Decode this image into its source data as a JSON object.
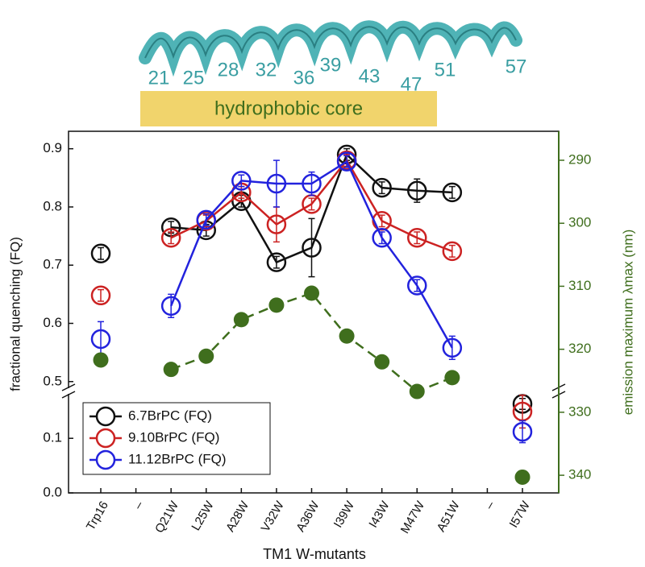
{
  "chart_data": {
    "type": "line",
    "helix_labels": [
      "21",
      "25",
      "28",
      "32",
      "36",
      "39",
      "43",
      "47",
      "51",
      "57"
    ],
    "annotation": "hydrophobic core",
    "x_label": "TM1 W-mutants",
    "y_label": "fractional quenching (FQ)",
    "y2_label": "emission maximum λmax (nm)",
    "categories": [
      "Trp16",
      "–",
      "Q21W",
      "L25W",
      "A28W",
      "V32W",
      "A36W",
      "I39W",
      "I43W",
      "M47W",
      "A51W",
      "–",
      "I57W"
    ],
    "ylim": [
      0,
      0.93
    ],
    "y_break": [
      0.18,
      0.49
    ],
    "yticks": [
      {
        "value": 0,
        "label": "0.0"
      },
      0.1,
      0.5,
      0.6,
      0.7,
      0.8,
      0.9
    ],
    "y2lim": [
      342.8,
      285.4
    ],
    "y2ticks": [
      290,
      300,
      310,
      320,
      330,
      340
    ],
    "y2_color": "#3f6e1d",
    "legend": "lower-left",
    "series": [
      {
        "name": "6.7BrPC (FQ)",
        "color": "#111111",
        "marker": "open",
        "values": [
          0.72,
          null,
          0.765,
          0.76,
          0.81,
          0.705,
          0.73,
          0.89,
          0.833,
          0.828,
          0.825,
          null,
          0.163
        ],
        "errors": [
          0.01,
          null,
          0.01,
          0.01,
          0.01,
          0.01,
          0.05,
          0.01,
          0.01,
          0.02,
          0.01,
          null,
          0.01
        ]
      },
      {
        "name": "9.10BrPC (FQ)",
        "color": "#cc2222",
        "marker": "open",
        "values": [
          0.648,
          null,
          0.747,
          0.776,
          0.825,
          0.77,
          0.805,
          0.88,
          0.776,
          0.747,
          0.724,
          null,
          0.149
        ],
        "errors": [
          0.01,
          null,
          0.01,
          0.01,
          0.01,
          0.03,
          0.01,
          0.01,
          0.01,
          0.01,
          0.01,
          null,
          0.03
        ]
      },
      {
        "name": "11.12BrPC (FQ)",
        "color": "#2222dd",
        "marker": "open",
        "values": [
          0.573,
          null,
          0.63,
          0.778,
          0.845,
          0.84,
          0.84,
          0.878,
          0.747,
          0.665,
          0.558,
          null,
          0.112
        ],
        "errors": [
          0.03,
          null,
          0.02,
          0.01,
          0.01,
          0.04,
          0.02,
          0.01,
          0.01,
          0.01,
          0.02,
          null,
          0.02
        ]
      },
      {
        "color": "#3f6e1d",
        "marker": "filled",
        "dashed": true,
        "axis": "y2",
        "values": [
          321.7,
          null,
          323.2,
          321.1,
          315.3,
          313.0,
          311.1,
          317.9,
          322.0,
          326.7,
          324.5,
          null,
          340.3
        ]
      }
    ]
  }
}
